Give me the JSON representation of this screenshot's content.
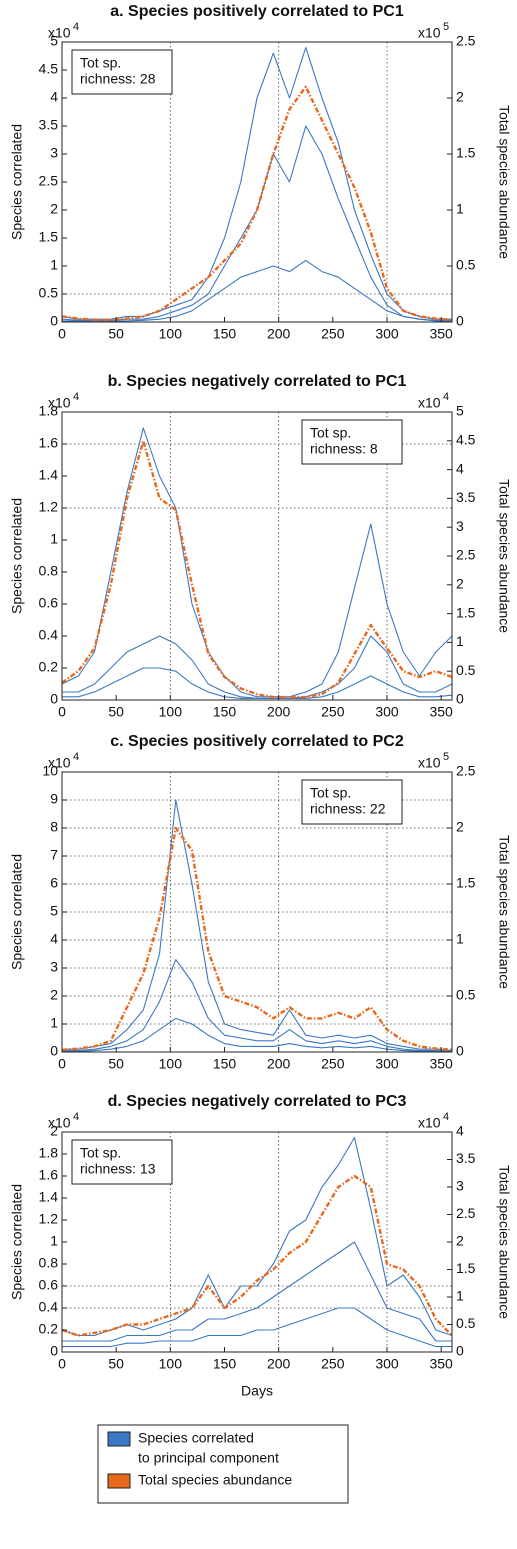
{
  "chart_data": [
    {
      "type": "line",
      "title": "a. Species positively correlated to PC1",
      "ylabel": "Species correlated",
      "y2label": "Total species abundance",
      "y_scale_label": {
        "text": "x10",
        "exponent": "4"
      },
      "y2_scale_label": {
        "text": "x10",
        "exponent": "5"
      },
      "box_text": [
        "Tot sp.",
        "richness: 28"
      ],
      "box_corner": "upper left",
      "x": [
        0,
        15,
        30,
        45,
        60,
        75,
        90,
        105,
        120,
        135,
        150,
        165,
        180,
        195,
        210,
        225,
        240,
        255,
        270,
        285,
        300,
        315,
        330,
        345,
        360
      ],
      "xlim": [
        0,
        360
      ],
      "xticks": [
        0,
        50,
        100,
        150,
        200,
        250,
        300,
        350
      ],
      "ylim": [
        0,
        5
      ],
      "yticks": [
        0,
        0.5,
        1,
        1.5,
        2,
        2.5,
        3,
        3.5,
        4,
        4.5,
        5
      ],
      "y2lim": [
        0,
        2.5
      ],
      "y2ticks": [
        0,
        0.5,
        1,
        1.5,
        2,
        2.5
      ],
      "grid_x": [
        100,
        200,
        300
      ],
      "grid_y": [
        0.5
      ],
      "series": [
        {
          "color": "#3b78c3",
          "values": [
            0.1,
            0.05,
            0.05,
            0.05,
            0.1,
            0.1,
            0.2,
            0.3,
            0.4,
            0.8,
            1.5,
            2.5,
            4.0,
            4.8,
            4.0,
            4.9,
            4.0,
            3.2,
            2.0,
            1.2,
            0.5,
            0.2,
            0.1,
            0.05,
            0.05
          ]
        },
        {
          "color": "#3b78c3",
          "values": [
            0.05,
            0.03,
            0.03,
            0.03,
            0.05,
            0.05,
            0.1,
            0.2,
            0.3,
            0.5,
            1.0,
            1.5,
            2.0,
            3.0,
            2.5,
            3.5,
            3.0,
            2.2,
            1.5,
            0.8,
            0.3,
            0.1,
            0.05,
            0.03,
            0.03
          ]
        },
        {
          "color": "#3b78c3",
          "values": [
            0.02,
            0.02,
            0.02,
            0.02,
            0.02,
            0.03,
            0.05,
            0.1,
            0.2,
            0.4,
            0.6,
            0.8,
            0.9,
            1.0,
            0.9,
            1.1,
            0.9,
            0.8,
            0.6,
            0.4,
            0.2,
            0.1,
            0.05,
            0.02,
            0.02
          ]
        },
        {
          "color": "#e8681c",
          "axis": "y2",
          "dashed": true,
          "values": [
            0.05,
            0.03,
            0.02,
            0.02,
            0.03,
            0.05,
            0.1,
            0.2,
            0.3,
            0.4,
            0.55,
            0.7,
            1.0,
            1.5,
            1.9,
            2.1,
            1.8,
            1.5,
            1.2,
            0.8,
            0.3,
            0.1,
            0.05,
            0.03,
            0.02
          ]
        }
      ]
    },
    {
      "type": "line",
      "title": "b. Species negatively correlated to PC1",
      "ylabel": "Species correlated",
      "y2label": "Total species abundance",
      "y_scale_label": {
        "text": "x10",
        "exponent": "4"
      },
      "y2_scale_label": {
        "text": "x10",
        "exponent": "4"
      },
      "box_text": [
        "Tot sp.",
        "richness: 8"
      ],
      "box_corner": "upper right",
      "x": [
        0,
        15,
        30,
        45,
        60,
        75,
        90,
        105,
        120,
        135,
        150,
        165,
        180,
        195,
        210,
        225,
        240,
        255,
        270,
        285,
        300,
        315,
        330,
        345,
        360
      ],
      "xlim": [
        0,
        360
      ],
      "xticks": [
        0,
        50,
        100,
        150,
        200,
        250,
        300,
        350
      ],
      "ylim": [
        0,
        1.8
      ],
      "yticks": [
        0,
        0.2,
        0.4,
        0.6,
        0.8,
        1,
        1.2,
        1.4,
        1.6,
        1.8
      ],
      "y2lim": [
        0,
        5
      ],
      "y2ticks": [
        0,
        0.5,
        1,
        1.5,
        2,
        2.5,
        3,
        3.5,
        4,
        4.5,
        5
      ],
      "grid_x": [
        100,
        200,
        300
      ],
      "grid_y": [
        1.2,
        1.6
      ],
      "series": [
        {
          "color": "#3b78c3",
          "values": [
            0.1,
            0.15,
            0.3,
            0.8,
            1.3,
            1.7,
            1.4,
            1.2,
            0.6,
            0.3,
            0.15,
            0.05,
            0.02,
            0.02,
            0.02,
            0.05,
            0.1,
            0.3,
            0.7,
            1.1,
            0.6,
            0.3,
            0.15,
            0.3,
            0.4
          ]
        },
        {
          "color": "#3b78c3",
          "values": [
            0.05,
            0.05,
            0.1,
            0.2,
            0.3,
            0.35,
            0.4,
            0.35,
            0.25,
            0.1,
            0.05,
            0.02,
            0.01,
            0.01,
            0.01,
            0.02,
            0.05,
            0.1,
            0.2,
            0.4,
            0.3,
            0.1,
            0.05,
            0.05,
            0.1
          ]
        },
        {
          "color": "#3b78c3",
          "values": [
            0.02,
            0.02,
            0.05,
            0.1,
            0.15,
            0.2,
            0.2,
            0.18,
            0.1,
            0.05,
            0.02,
            0.01,
            0.01,
            0.01,
            0.01,
            0.01,
            0.02,
            0.05,
            0.1,
            0.15,
            0.1,
            0.05,
            0.02,
            0.02,
            0.03
          ]
        },
        {
          "color": "#e8681c",
          "axis": "y2",
          "dashed": true,
          "values": [
            0.3,
            0.5,
            0.9,
            2.0,
            3.5,
            4.5,
            3.5,
            3.3,
            2.0,
            0.8,
            0.4,
            0.2,
            0.1,
            0.05,
            0.05,
            0.05,
            0.1,
            0.3,
            0.8,
            1.3,
            0.9,
            0.5,
            0.4,
            0.5,
            0.4
          ]
        }
      ]
    },
    {
      "type": "line",
      "title": "c. Species positively correlated to PC2",
      "ylabel": "Species correlated",
      "y2label": "Total species abundance",
      "y_scale_label": {
        "text": "x10",
        "exponent": "4"
      },
      "y2_scale_label": {
        "text": "x10",
        "exponent": "5"
      },
      "box_text": [
        "Tot sp.",
        "richness: 22"
      ],
      "box_corner": "upper right",
      "x": [
        0,
        15,
        30,
        45,
        60,
        75,
        90,
        105,
        120,
        135,
        150,
        165,
        180,
        195,
        210,
        225,
        240,
        255,
        270,
        285,
        300,
        315,
        330,
        345,
        360
      ],
      "xlim": [
        0,
        360
      ],
      "xticks": [
        0,
        50,
        100,
        150,
        200,
        250,
        300,
        350
      ],
      "ylim": [
        0,
        10
      ],
      "yticks": [
        0,
        1,
        2,
        3,
        4,
        5,
        6,
        7,
        8,
        9,
        10
      ],
      "y2lim": [
        0,
        2.5
      ],
      "y2ticks": [
        0,
        0.5,
        1,
        1.5,
        2,
        2.5
      ],
      "grid_x": [
        100,
        200,
        300
      ],
      "grid_y": [
        1,
        2,
        3,
        4,
        5,
        6,
        7,
        8,
        9
      ],
      "series": [
        {
          "color": "#3b78c3",
          "values": [
            0.1,
            0.1,
            0.2,
            0.3,
            0.8,
            1.5,
            3.5,
            9.0,
            6.0,
            2.5,
            1.0,
            0.8,
            0.7,
            0.6,
            1.5,
            0.6,
            0.5,
            0.6,
            0.5,
            0.6,
            0.3,
            0.2,
            0.1,
            0.1,
            0.05
          ]
        },
        {
          "color": "#3b78c3",
          "values": [
            0.05,
            0.05,
            0.1,
            0.2,
            0.4,
            0.8,
            1.8,
            3.3,
            2.5,
            1.2,
            0.6,
            0.5,
            0.4,
            0.4,
            0.8,
            0.4,
            0.3,
            0.4,
            0.3,
            0.4,
            0.2,
            0.1,
            0.05,
            0.05,
            0.03
          ]
        },
        {
          "color": "#3b78c3",
          "values": [
            0.02,
            0.02,
            0.05,
            0.1,
            0.2,
            0.4,
            0.8,
            1.2,
            1.0,
            0.6,
            0.3,
            0.2,
            0.2,
            0.2,
            0.3,
            0.2,
            0.15,
            0.2,
            0.15,
            0.2,
            0.1,
            0.05,
            0.03,
            0.02,
            0.02
          ]
        },
        {
          "color": "#e8681c",
          "axis": "y2",
          "dashed": true,
          "values": [
            0.02,
            0.03,
            0.05,
            0.1,
            0.4,
            0.7,
            1.2,
            2.0,
            1.8,
            0.9,
            0.5,
            0.45,
            0.4,
            0.3,
            0.4,
            0.3,
            0.3,
            0.35,
            0.3,
            0.4,
            0.2,
            0.1,
            0.05,
            0.03,
            0.02
          ]
        }
      ]
    },
    {
      "type": "line",
      "title": "d. Species negatively correlated to PC3",
      "ylabel": "Species correlated",
      "y2label": "Total species abundance",
      "xlabel": "Days",
      "y_scale_label": {
        "text": "x10",
        "exponent": "4"
      },
      "y2_scale_label": {
        "text": "x10",
        "exponent": "4"
      },
      "box_text": [
        "Tot sp.",
        "richness: 13"
      ],
      "box_corner": "upper left",
      "x": [
        0,
        15,
        30,
        45,
        60,
        75,
        90,
        105,
        120,
        135,
        150,
        165,
        180,
        195,
        210,
        225,
        240,
        255,
        270,
        285,
        300,
        315,
        330,
        345,
        360
      ],
      "xlim": [
        0,
        360
      ],
      "xticks": [
        0,
        50,
        100,
        150,
        200,
        250,
        300,
        350
      ],
      "ylim": [
        0,
        2
      ],
      "yticks": [
        0,
        0.2,
        0.4,
        0.6,
        0.8,
        1,
        1.2,
        1.4,
        1.6,
        1.8,
        2
      ],
      "y2lim": [
        0,
        4
      ],
      "y2ticks": [
        0,
        0.5,
        1,
        1.5,
        2,
        2.5,
        3,
        3.5,
        4
      ],
      "grid_x": [
        100,
        200,
        300
      ],
      "grid_y": [
        0.4,
        0.6
      ],
      "series": [
        {
          "color": "#3b78c3",
          "values": [
            0.2,
            0.15,
            0.15,
            0.2,
            0.25,
            0.2,
            0.25,
            0.3,
            0.4,
            0.7,
            0.4,
            0.6,
            0.6,
            0.8,
            1.1,
            1.2,
            1.5,
            1.7,
            1.95,
            1.3,
            0.6,
            0.7,
            0.5,
            0.2,
            0.15
          ]
        },
        {
          "color": "#3b78c3",
          "values": [
            0.1,
            0.1,
            0.1,
            0.1,
            0.15,
            0.15,
            0.15,
            0.2,
            0.2,
            0.3,
            0.3,
            0.35,
            0.4,
            0.5,
            0.6,
            0.7,
            0.8,
            0.9,
            1.0,
            0.7,
            0.4,
            0.35,
            0.3,
            0.1,
            0.1
          ]
        },
        {
          "color": "#3b78c3",
          "values": [
            0.05,
            0.05,
            0.05,
            0.05,
            0.08,
            0.08,
            0.1,
            0.1,
            0.1,
            0.15,
            0.15,
            0.15,
            0.2,
            0.2,
            0.25,
            0.3,
            0.35,
            0.4,
            0.4,
            0.3,
            0.2,
            0.15,
            0.1,
            0.05,
            0.05
          ]
        },
        {
          "color": "#e8681c",
          "axis": "y2",
          "dashed": true,
          "values": [
            0.4,
            0.3,
            0.35,
            0.4,
            0.5,
            0.5,
            0.6,
            0.7,
            0.8,
            1.2,
            0.8,
            1.0,
            1.3,
            1.5,
            1.8,
            2.0,
            2.5,
            3.0,
            3.2,
            3.0,
            1.6,
            1.5,
            1.2,
            0.6,
            0.3
          ]
        }
      ]
    }
  ],
  "legend": {
    "items": [
      {
        "lines": [
          "Species correlated",
          "to principal component"
        ],
        "color": "#3b78c3"
      },
      {
        "lines": [
          "Total species abundance"
        ],
        "color": "#e8681c"
      }
    ]
  }
}
